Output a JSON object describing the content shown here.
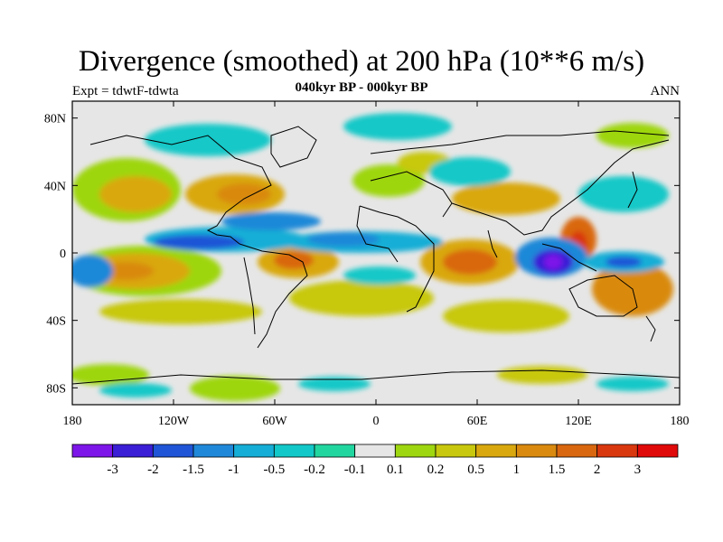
{
  "figure": {
    "title": "Divergence (smoothed) at 200 hPa (10**6 m/s)",
    "subtitle": "040kyr BP - 000kyr BP",
    "left_label": "Expt = tdwtF-tdwta",
    "right_label": "ANN"
  },
  "axes": {
    "x_ticks": [
      "180",
      "120W",
      "60W",
      "0",
      "60E",
      "120E",
      "180"
    ],
    "y_ticks": [
      "80N",
      "40N",
      "0",
      "40S",
      "80S"
    ],
    "x_range": [
      -180,
      180
    ],
    "y_range": [
      -90,
      90
    ]
  },
  "colorbar": {
    "labels": [
      "-3",
      "-2",
      "-1.5",
      "-1",
      "-0.5",
      "-0.2",
      "-0.1",
      "0.1",
      "0.2",
      "0.5",
      "1",
      "1.5",
      "2",
      "3"
    ],
    "colors": [
      "#7d16e8",
      "#3a1fd6",
      "#1f55d6",
      "#1f88d8",
      "#15aed6",
      "#13c8c8",
      "#22d6a0",
      "#e6e6e6",
      "#9ed60f",
      "#c8c80f",
      "#d9a80f",
      "#d98a0f",
      "#d9670f",
      "#d9380f",
      "#e00a0a"
    ]
  },
  "map_background": "#e6e6e6"
}
